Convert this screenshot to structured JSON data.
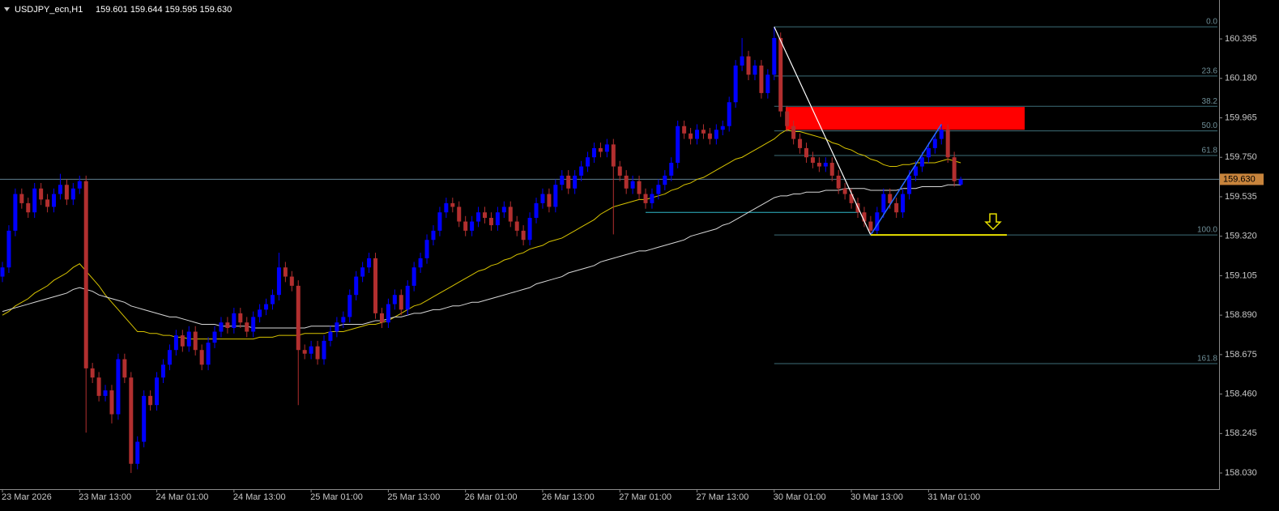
{
  "chart_data": {
    "type": "candlestick",
    "title": "USDJPY_ecn,H1",
    "header_values": "159.601 159.644 159.595 159.630",
    "up_color": "#0000ff",
    "down_color": "#b22f2f",
    "ylim": [
      157.942,
      160.607
    ],
    "yticks": [
      160.395,
      {
        "value": 160.18,
        "label": "160.180"
      },
      159.965,
      {
        "value": 159.75,
        "label": "159.750"
      },
      159.535,
      {
        "value": 159.32,
        "label": "159.320"
      },
      159.105,
      {
        "value": 158.89,
        "label": "158.890"
      },
      158.675,
      {
        "value": 158.46,
        "label": "158.460"
      },
      158.245,
      {
        "value": 158.03,
        "label": "158.030"
      }
    ],
    "current_price": {
      "value": 159.63,
      "label": "159.630"
    },
    "categories": [
      "23 Mar 2026",
      null,
      null,
      null,
      null,
      null,
      null,
      null,
      null,
      null,
      null,
      null,
      "23 Mar 13:00",
      null,
      null,
      null,
      null,
      null,
      null,
      null,
      null,
      null,
      null,
      null,
      "24 Mar 01:00",
      null,
      null,
      null,
      null,
      null,
      null,
      null,
      null,
      null,
      null,
      null,
      "24 Mar 13:00",
      null,
      null,
      null,
      null,
      null,
      null,
      null,
      null,
      null,
      null,
      null,
      "25 Mar 01:00",
      null,
      null,
      null,
      null,
      null,
      null,
      null,
      null,
      null,
      null,
      null,
      "25 Mar 13:00",
      null,
      null,
      null,
      null,
      null,
      null,
      null,
      null,
      null,
      null,
      null,
      "26 Mar 01:00",
      null,
      null,
      null,
      null,
      null,
      null,
      null,
      null,
      null,
      null,
      null,
      "26 Mar 13:00",
      null,
      null,
      null,
      null,
      null,
      null,
      null,
      null,
      null,
      null,
      null,
      "27 Mar 01:00",
      null,
      null,
      null,
      null,
      null,
      null,
      null,
      null,
      null,
      null,
      null,
      "27 Mar 13:00",
      null,
      null,
      null,
      null,
      null,
      null,
      null,
      null,
      null,
      null,
      null,
      "30 Mar 01:00",
      null,
      null,
      null,
      null,
      null,
      null,
      null,
      null,
      null,
      null,
      null,
      "30 Mar 13:00",
      null,
      null,
      null,
      null,
      null,
      null,
      null,
      null,
      null,
      null,
      null,
      "31 Mar 01:00",
      null,
      null,
      null,
      null,
      null
    ],
    "open": [
      159.1,
      159.15,
      159.35,
      159.55,
      159.5,
      159.45,
      159.58,
      159.52,
      159.48,
      159.55,
      159.6,
      159.52,
      159.58,
      159.62,
      158.6,
      158.55,
      158.45,
      158.48,
      158.35,
      158.65,
      158.55,
      158.08,
      158.2,
      158.45,
      158.4,
      158.55,
      158.62,
      158.7,
      158.78,
      158.72,
      158.8,
      158.7,
      158.62,
      158.74,
      158.8,
      158.85,
      158.82,
      158.9,
      158.85,
      158.8,
      158.88,
      158.92,
      158.95,
      159.0,
      159.15,
      159.1,
      159.05,
      158.7,
      158.68,
      158.72,
      158.65,
      158.75,
      158.8,
      158.85,
      158.88,
      159.0,
      159.1,
      159.15,
      159.2,
      158.9,
      158.85,
      158.95,
      159.0,
      158.92,
      159.05,
      159.15,
      159.2,
      159.3,
      159.35,
      159.45,
      159.5,
      159.48,
      159.4,
      159.35,
      159.4,
      159.45,
      159.42,
      159.38,
      159.45,
      159.48,
      159.4,
      159.35,
      159.3,
      159.42,
      159.5,
      159.55,
      159.48,
      159.6,
      159.65,
      159.58,
      159.65,
      159.7,
      159.75,
      159.8,
      159.78,
      159.82,
      159.7,
      159.65,
      159.58,
      159.62,
      159.55,
      159.5,
      159.55,
      159.6,
      159.65,
      159.72,
      159.92,
      159.88,
      159.85,
      159.9,
      159.88,
      159.85,
      159.9,
      159.92,
      160.05,
      160.25,
      160.3,
      160.2,
      160.25,
      160.1,
      160.2,
      160.4,
      160.0,
      159.92,
      159.85,
      159.8,
      159.75,
      159.72,
      159.7,
      159.72,
      159.65,
      159.58,
      159.55,
      159.5,
      159.45,
      159.4,
      159.35,
      159.45,
      159.55,
      159.5,
      159.45,
      159.55,
      159.65,
      159.7,
      159.75,
      159.8,
      159.85,
      159.9,
      159.75,
      159.601
    ],
    "high": [
      159.18,
      159.38,
      159.58,
      159.58,
      159.53,
      159.61,
      159.61,
      159.55,
      159.58,
      159.66,
      159.63,
      159.61,
      159.65,
      159.65,
      158.63,
      158.58,
      158.51,
      158.51,
      158.68,
      158.68,
      158.58,
      158.23,
      158.48,
      158.48,
      158.58,
      158.65,
      158.73,
      158.81,
      158.81,
      158.83,
      158.83,
      158.73,
      158.77,
      158.83,
      158.88,
      158.88,
      158.93,
      158.93,
      158.88,
      158.91,
      158.95,
      158.98,
      159.03,
      159.23,
      159.18,
      159.13,
      159.08,
      158.73,
      158.75,
      158.75,
      158.78,
      158.83,
      158.88,
      158.91,
      159.03,
      159.13,
      159.18,
      159.23,
      159.23,
      158.93,
      158.98,
      159.03,
      159.03,
      159.08,
      159.18,
      159.23,
      159.33,
      159.38,
      159.48,
      159.53,
      159.53,
      159.51,
      159.43,
      159.43,
      159.48,
      159.48,
      159.45,
      159.48,
      159.51,
      159.51,
      159.43,
      159.38,
      159.45,
      159.53,
      159.58,
      159.58,
      159.63,
      159.68,
      159.68,
      159.68,
      159.73,
      159.78,
      159.83,
      159.83,
      159.85,
      159.85,
      159.73,
      159.68,
      159.65,
      159.65,
      159.58,
      159.58,
      159.63,
      159.68,
      159.75,
      159.95,
      159.95,
      159.91,
      159.93,
      159.93,
      159.91,
      159.93,
      159.95,
      160.08,
      160.28,
      160.4,
      160.33,
      160.28,
      160.28,
      160.23,
      160.461,
      160.43,
      160.03,
      159.95,
      159.88,
      159.83,
      159.78,
      159.75,
      159.75,
      159.75,
      159.68,
      159.61,
      159.58,
      159.53,
      159.48,
      159.43,
      159.48,
      159.58,
      159.58,
      159.53,
      159.58,
      159.68,
      159.73,
      159.78,
      159.83,
      159.88,
      159.93,
      159.93,
      159.78,
      159.644
    ],
    "low": [
      159.07,
      159.12,
      159.32,
      159.47,
      159.42,
      159.42,
      159.49,
      159.45,
      159.45,
      159.52,
      159.49,
      159.49,
      159.55,
      158.25,
      158.52,
      158.42,
      158.42,
      158.3,
      158.32,
      158.52,
      158.03,
      158.05,
      158.17,
      158.37,
      158.37,
      158.52,
      158.59,
      158.67,
      158.69,
      158.69,
      158.67,
      158.59,
      158.59,
      158.71,
      158.77,
      158.79,
      158.79,
      158.82,
      158.77,
      158.77,
      158.85,
      158.89,
      158.92,
      158.97,
      159.07,
      159.02,
      158.4,
      158.65,
      158.65,
      158.62,
      158.62,
      158.72,
      158.77,
      158.82,
      158.85,
      158.97,
      159.07,
      159.12,
      158.87,
      158.82,
      158.82,
      158.92,
      158.89,
      158.89,
      159.02,
      159.12,
      159.17,
      159.27,
      159.32,
      159.42,
      159.45,
      159.37,
      159.32,
      159.32,
      159.37,
      159.39,
      159.35,
      159.35,
      159.42,
      159.37,
      159.32,
      159.27,
      159.27,
      159.39,
      159.47,
      159.45,
      159.45,
      159.57,
      159.55,
      159.55,
      159.62,
      159.67,
      159.72,
      159.75,
      159.75,
      159.33,
      159.62,
      159.55,
      159.55,
      159.52,
      159.47,
      159.47,
      159.52,
      159.57,
      159.62,
      159.69,
      159.85,
      159.82,
      159.82,
      159.85,
      159.82,
      159.82,
      159.87,
      159.89,
      160.02,
      160.22,
      160.17,
      160.17,
      160.07,
      160.07,
      160.17,
      159.97,
      159.89,
      159.82,
      159.77,
      159.72,
      159.69,
      159.67,
      159.67,
      159.62,
      159.55,
      159.52,
      159.47,
      159.42,
      159.37,
      159.327,
      159.33,
      159.42,
      159.47,
      159.42,
      159.42,
      159.52,
      159.62,
      159.67,
      159.72,
      159.77,
      159.82,
      159.72,
      159.59,
      159.595
    ],
    "close": [
      159.15,
      159.35,
      159.55,
      159.5,
      159.45,
      159.58,
      159.52,
      159.48,
      159.55,
      159.6,
      159.52,
      159.58,
      159.62,
      158.6,
      158.55,
      158.45,
      158.48,
      158.35,
      158.65,
      158.55,
      158.08,
      158.2,
      158.45,
      158.4,
      158.55,
      158.62,
      158.7,
      158.78,
      158.72,
      158.8,
      158.7,
      158.62,
      158.74,
      158.8,
      158.85,
      158.82,
      158.9,
      158.85,
      158.8,
      158.88,
      158.92,
      158.95,
      159.0,
      159.15,
      159.1,
      159.05,
      158.7,
      158.68,
      158.72,
      158.65,
      158.75,
      158.8,
      158.85,
      158.88,
      159.0,
      159.1,
      159.15,
      159.2,
      158.9,
      158.85,
      158.95,
      159.0,
      158.92,
      159.05,
      159.15,
      159.2,
      159.3,
      159.35,
      159.45,
      159.5,
      159.48,
      159.4,
      159.35,
      159.4,
      159.45,
      159.42,
      159.38,
      159.45,
      159.48,
      159.4,
      159.35,
      159.3,
      159.42,
      159.5,
      159.55,
      159.48,
      159.6,
      159.65,
      159.58,
      159.65,
      159.7,
      159.75,
      159.8,
      159.78,
      159.82,
      159.7,
      159.65,
      159.58,
      159.62,
      159.55,
      159.5,
      159.55,
      159.6,
      159.65,
      159.72,
      159.92,
      159.88,
      159.85,
      159.9,
      159.88,
      159.85,
      159.9,
      159.92,
      160.05,
      160.25,
      160.3,
      160.2,
      160.25,
      160.1,
      160.2,
      160.4,
      160.0,
      159.92,
      159.85,
      159.8,
      159.75,
      159.72,
      159.7,
      159.72,
      159.65,
      159.58,
      159.55,
      159.5,
      159.45,
      159.4,
      159.35,
      159.45,
      159.55,
      159.5,
      159.45,
      159.55,
      159.65,
      159.7,
      159.75,
      159.8,
      159.85,
      159.9,
      159.75,
      159.62,
      159.63
    ],
    "indicators": [
      {
        "color": "#d8c400",
        "values": [
          158.89,
          158.91,
          158.94,
          158.96,
          158.98,
          159.01,
          159.03,
          159.05,
          159.08,
          159.1,
          159.12,
          159.15,
          159.17,
          159.13,
          159.09,
          159.05,
          159.0,
          158.96,
          158.92,
          158.88,
          158.84,
          158.8,
          158.8,
          158.79,
          158.79,
          158.78,
          158.78,
          158.77,
          158.77,
          158.76,
          158.76,
          158.76,
          158.76,
          158.76,
          158.76,
          158.76,
          158.76,
          158.76,
          158.76,
          158.76,
          158.77,
          158.77,
          158.77,
          158.78,
          158.78,
          158.78,
          158.78,
          158.79,
          158.79,
          158.79,
          158.79,
          158.8,
          158.8,
          158.8,
          158.81,
          158.82,
          158.83,
          158.84,
          158.84,
          158.85,
          158.86,
          158.88,
          158.9,
          158.92,
          158.94,
          158.95,
          158.97,
          158.99,
          159.01,
          159.03,
          159.05,
          159.07,
          159.09,
          159.11,
          159.13,
          159.14,
          159.16,
          159.17,
          159.19,
          159.2,
          159.22,
          159.23,
          159.25,
          159.26,
          159.27,
          159.29,
          159.3,
          159.31,
          159.33,
          159.35,
          159.37,
          159.39,
          159.41,
          159.44,
          159.46,
          159.48,
          159.49,
          159.5,
          159.51,
          159.52,
          159.52,
          159.53,
          159.54,
          159.55,
          159.57,
          159.58,
          159.6,
          159.61,
          159.63,
          159.64,
          159.66,
          159.68,
          159.7,
          159.72,
          159.74,
          159.75,
          159.77,
          159.79,
          159.81,
          159.83,
          159.85,
          159.88,
          159.9,
          159.89,
          159.89,
          159.88,
          159.87,
          159.86,
          159.85,
          159.83,
          159.82,
          159.8,
          159.79,
          159.77,
          159.76,
          159.74,
          159.73,
          159.71,
          159.7,
          159.7,
          159.71,
          159.71,
          159.72,
          159.72,
          159.72,
          159.72,
          159.73,
          159.74,
          159.73,
          159.72
        ]
      },
      {
        "color": "#d8d8d8",
        "values": [
          158.91,
          158.92,
          158.93,
          158.94,
          158.95,
          158.96,
          158.97,
          158.98,
          158.99,
          159.0,
          159.01,
          159.03,
          159.04,
          159.03,
          159.02,
          159.0,
          158.99,
          158.98,
          158.97,
          158.96,
          158.94,
          158.93,
          158.92,
          158.91,
          158.9,
          158.89,
          158.88,
          158.88,
          158.87,
          158.86,
          158.85,
          158.84,
          158.84,
          158.84,
          158.83,
          158.83,
          158.83,
          158.83,
          158.83,
          158.82,
          158.82,
          158.82,
          158.82,
          158.82,
          158.82,
          158.82,
          158.82,
          158.82,
          158.83,
          158.83,
          158.83,
          158.83,
          158.83,
          158.84,
          158.84,
          158.84,
          158.84,
          158.85,
          158.86,
          158.86,
          158.87,
          158.88,
          158.88,
          158.89,
          158.9,
          158.9,
          158.91,
          158.92,
          158.92,
          158.93,
          158.94,
          158.94,
          158.95,
          158.96,
          158.96,
          158.97,
          158.98,
          158.99,
          159.0,
          159.01,
          159.02,
          159.03,
          159.04,
          159.06,
          159.07,
          159.08,
          159.09,
          159.1,
          159.12,
          159.13,
          159.14,
          159.15,
          159.16,
          159.18,
          159.19,
          159.2,
          159.21,
          159.22,
          159.23,
          159.24,
          159.24,
          159.25,
          159.26,
          159.27,
          159.28,
          159.29,
          159.3,
          159.32,
          159.33,
          159.34,
          159.35,
          159.36,
          159.38,
          159.39,
          159.41,
          159.43,
          159.45,
          159.47,
          159.49,
          159.51,
          159.53,
          159.54,
          159.54,
          159.55,
          159.55,
          159.56,
          159.56,
          159.56,
          159.57,
          159.57,
          159.57,
          159.58,
          159.58,
          159.58,
          159.58,
          159.57,
          159.57,
          159.57,
          159.57,
          159.57,
          159.58,
          159.58,
          159.58,
          159.59,
          159.59,
          159.59,
          159.59,
          159.6,
          159.6,
          159.6
        ]
      }
    ],
    "fibonacci": {
      "color": "#3e6e78",
      "levels": [
        {
          "label": "0.0",
          "price": 160.461
        },
        {
          "label": "23.6",
          "price": 160.193
        },
        {
          "label": "38.2",
          "price": 160.028
        },
        {
          "label": "50.0",
          "price": 159.894
        },
        {
          "label": "61.8",
          "price": 159.76
        },
        {
          "label": "100.0",
          "price": 159.327
        },
        {
          "label": "161.8",
          "price": 158.626
        }
      ]
    },
    "zone": {
      "top": 160.024,
      "bottom": 159.9,
      "color": "#ff0000"
    },
    "horizontal_line": {
      "price": 159.45,
      "color": "#2fb8c8"
    },
    "support_color": "#e8e000",
    "trend_colors": [
      "#ffffff",
      "#2a6cff"
    ]
  }
}
